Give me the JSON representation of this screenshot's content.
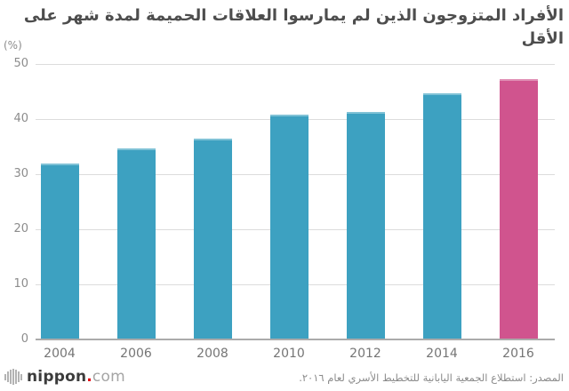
{
  "title": "الأفراد المتزوجون الذين لم يمارسوا العلاقات الحميمة لمدة شهر على الأقل",
  "axis": {
    "unit_label": "(%)",
    "y_ticks": [
      "0",
      "10",
      "20",
      "30",
      "40",
      "50"
    ]
  },
  "chart_data": {
    "type": "bar",
    "title": "الأفراد المتزوجون الذين لم يمارسوا العلاقات الحميمة لمدة شهر على الأقل",
    "categories": [
      "2004",
      "2006",
      "2008",
      "2010",
      "2012",
      "2014",
      "2016"
    ],
    "values": [
      31.9,
      34.6,
      36.5,
      40.8,
      41.3,
      44.6,
      47.2
    ],
    "xlabel": "",
    "ylabel": "(%)",
    "ylim": [
      0,
      50
    ],
    "y_step": 10,
    "grid": true,
    "legend": "none",
    "bar_color": "#3da1c1",
    "highlight_color": "#d0548e",
    "highlight_index": 6
  },
  "colors": {
    "background": "#ffffff",
    "gridline": "#dcdcdc",
    "baseline": "#ababab",
    "title_text": "#4d4d4d",
    "tick_text": "#8c8c8c",
    "category_text": "#757575",
    "source_text": "#8a8a8a",
    "logo_dot": "#e60012"
  },
  "footer": {
    "logo": {
      "icon": "nippon-stripes-icon",
      "name": "nippon",
      "dot": ".",
      "tld": "com"
    },
    "source": "المصدر: استطلاع الجمعية اليابانية للتخطيط الأسري لعام ٢٠١٦."
  }
}
